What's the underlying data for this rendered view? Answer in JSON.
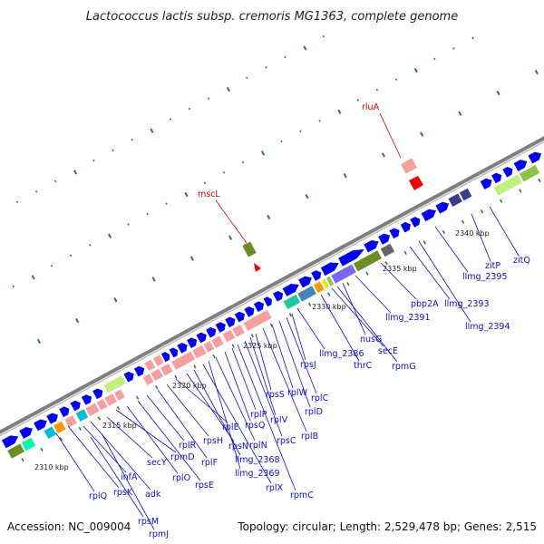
{
  "title": "Lactococcus lactis subsp. cremoris MG1363, complete genome",
  "footer": {
    "accession": "Accession: NC_009004",
    "summary": "Topology: circular; Length: 2,529,478 bp; Genes: 2,515"
  },
  "colors": {
    "blue_gene": "#0000ee",
    "backbone": "#7f7f7f",
    "tick_green": "#2e7d32",
    "blue_label": "#1010c0",
    "red_label": "#cc0000"
  },
  "ticks": [
    "2310 kbp",
    "2315 kbp",
    "2320 kbp",
    "2325 kbp",
    "2330 kbp",
    "2335 kbp",
    "2340 kbp"
  ],
  "genes_lower": [
    "rplQ",
    "rpsK",
    "infA",
    "adk",
    "secY",
    "rpmD",
    "rplO",
    "rpsE",
    "rplR",
    "rplF",
    "rpsH",
    "rplE",
    "rpsN",
    "llmg_2368",
    "rplX",
    "llmg_2369",
    "rplN",
    "rpsQ",
    "rplP",
    "rpmC",
    "rpsC",
    "rplV",
    "rpsS",
    "rplB",
    "rplW",
    "rplD",
    "rplC",
    "rpsJ",
    "llmg_2386",
    "thrC",
    "secE",
    "rpmG",
    "nusG",
    "llmg_2391",
    "pbp2A",
    "llmg_2393",
    "llmg_2394",
    "llmg_2395",
    "zitP",
    "zitQ",
    "rpsM",
    "rpmJ"
  ],
  "genes_upper": [
    "mscL",
    "rluA"
  ]
}
